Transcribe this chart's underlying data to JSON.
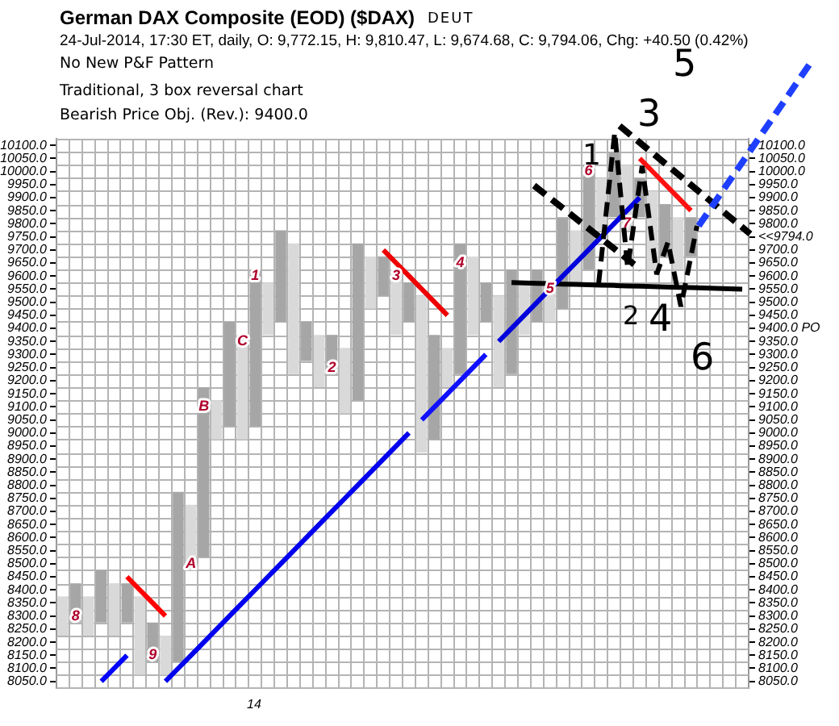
{
  "chart_data": {
    "type": "bar",
    "title": "German DAX Composite (EOD) ($DAX)",
    "subtitle": "24-Jul-2014, 17:30 ET, daily, O: 9,772.15, H: 9,810.47, L: 9,674.68, C: 9,794.06, Chg: +40.50 (0.42%)",
    "annotations": [
      "DEUT",
      "No New P&F Pattern",
      "Traditional, 3 box reversal chart",
      "Bearish Price Obj. (Rev.): 9400.0",
      "1",
      "2",
      "3",
      "4",
      "5",
      "6",
      "14",
      "8",
      "9",
      "A",
      "B",
      "C",
      "1",
      "2",
      "3",
      "4",
      "5",
      "6",
      "7"
    ],
    "categories": [
      null,
      null,
      null,
      null,
      null,
      null,
      null,
      null,
      null,
      null,
      null,
      null,
      null,
      null,
      null,
      null,
      null,
      null,
      null,
      null,
      null,
      null,
      null,
      null,
      null,
      null,
      null,
      null,
      null,
      null,
      null,
      null,
      null,
      null,
      null,
      null,
      null,
      null,
      null,
      null,
      null,
      null,
      null,
      null,
      null,
      null,
      null,
      null,
      null,
      null,
      null,
      null,
      null,
      null
    ],
    "series": [
      {
        "type": "bar",
        "base": [
          8225,
          8275,
          8225,
          8275,
          8225,
          8275,
          8075,
          8125,
          8075,
          8125,
          8475,
          8525,
          8975,
          9025,
          8975,
          9025,
          9375,
          9425,
          9225,
          9275,
          9175,
          9225,
          9075,
          9125,
          9475,
          9525,
          9375,
          9425,
          8925,
          8975,
          9175,
          9225,
          9375,
          9425,
          9175,
          9225,
          9375,
          9425,
          9425,
          9475,
          9575,
          9625,
          9775,
          9825,
          9775,
          9825,
          9625,
          9675,
          9625,
          9675,
          null,
          null,
          null,
          null
        ],
        "values": [
          150,
          150,
          150,
          200,
          200,
          150,
          300,
          150,
          150,
          650,
          250,
          650,
          150,
          400,
          400,
          600,
          200,
          350,
          500,
          150,
          200,
          150,
          250,
          600,
          200,
          150,
          250,
          150,
          600,
          400,
          150,
          500,
          300,
          150,
          350,
          400,
          200,
          200,
          150,
          350,
          200,
          400,
          200,
          250,
          250,
          150,
          300,
          200,
          200,
          150,
          null,
          null,
          null,
          null
        ],
        "colors": [
          "#d9d9d9",
          "#a6a6a6",
          "#d9d9d9",
          "#a6a6a6",
          "#d9d9d9",
          "#a6a6a6",
          "#d9d9d9",
          "#a6a6a6",
          "#d9d9d9",
          "#a6a6a6",
          "#d9d9d9",
          "#a6a6a6",
          "#d9d9d9",
          "#a6a6a6",
          "#d9d9d9",
          "#a6a6a6",
          "#d9d9d9",
          "#a6a6a6",
          "#d9d9d9",
          "#a6a6a6",
          "#d9d9d9",
          "#a6a6a6",
          "#d9d9d9",
          "#a6a6a6",
          "#d9d9d9",
          "#a6a6a6",
          "#d9d9d9",
          "#a6a6a6",
          "#d9d9d9",
          "#a6a6a6",
          "#d9d9d9",
          "#a6a6a6",
          "#d9d9d9",
          "#a6a6a6",
          "#d9d9d9",
          "#a6a6a6",
          "#d9d9d9",
          "#a6a6a6",
          "#d9d9d9",
          "#a6a6a6",
          "#d9d9d9",
          "#a6a6a6",
          "#d9d9d9",
          "#a6a6a6",
          "#d9d9d9",
          "#a6a6a6",
          "#d9d9d9",
          "#a6a6a6",
          "#d9d9d9",
          "#a6a6a6",
          null,
          null,
          null,
          null
        ]
      },
      {
        "type": "line",
        "color": "#0000ff",
        "values": [
          null,
          null,
          null,
          8050,
          8100,
          8150,
          null,
          null,
          null,
          null,
          null,
          null,
          null,
          null,
          null,
          null,
          null,
          null,
          null,
          null,
          null,
          null,
          null,
          null,
          null,
          null,
          null,
          null,
          null,
          null,
          null,
          null,
          null,
          null,
          null,
          null,
          null,
          null,
          null,
          null,
          null,
          null,
          null,
          null,
          null,
          null,
          null,
          null,
          null,
          null,
          null,
          null,
          null,
          null
        ]
      },
      {
        "type": "line",
        "color": "#0000ee",
        "values": [
          null,
          null,
          null,
          null,
          null,
          null,
          null,
          null,
          8050,
          8100,
          8150,
          8200,
          8250,
          8300,
          8350,
          8400,
          8450,
          8500,
          8550,
          8600,
          8650,
          8700,
          8750,
          8800,
          8850,
          8900,
          8950,
          9000,
          null,
          null,
          null,
          null,
          null,
          null,
          null,
          null,
          null,
          null,
          null,
          null,
          null,
          null,
          null,
          null,
          null,
          null,
          null,
          null,
          null,
          null,
          null,
          null,
          null,
          null
        ]
      },
      {
        "type": "line",
        "color": "#1010ff",
        "values": [
          null,
          null,
          null,
          null,
          null,
          null,
          null,
          null,
          null,
          null,
          null,
          null,
          null,
          null,
          null,
          null,
          null,
          null,
          null,
          null,
          null,
          null,
          null,
          null,
          null,
          null,
          null,
          null,
          9050,
          9100,
          9150,
          9200,
          9250,
          9300,
          null,
          null,
          null,
          null,
          null,
          null,
          null,
          null,
          null,
          null,
          null,
          null,
          null,
          null,
          null,
          null,
          null,
          null,
          null,
          null
        ]
      },
      {
        "type": "line",
        "color": "#0000dd",
        "values": [
          null,
          null,
          null,
          null,
          null,
          null,
          null,
          null,
          null,
          null,
          null,
          null,
          null,
          null,
          null,
          null,
          null,
          null,
          null,
          null,
          null,
          null,
          null,
          null,
          null,
          null,
          null,
          null,
          null,
          null,
          null,
          null,
          null,
          null,
          9350,
          9400,
          9450,
          9500,
          9550,
          9600,
          9650,
          9700,
          9750,
          9800,
          9850,
          9900,
          null,
          null,
          null,
          null,
          null,
          null,
          null,
          null
        ]
      },
      {
        "type": "line",
        "color": "#ff0000",
        "values": [
          null,
          null,
          null,
          null,
          null,
          8450,
          8400,
          8350,
          8300,
          null,
          null,
          null,
          null,
          null,
          null,
          null,
          null,
          null,
          null,
          null,
          null,
          null,
          null,
          null,
          null,
          null,
          null,
          null,
          null,
          null,
          null,
          null,
          null,
          null,
          null,
          null,
          null,
          null,
          null,
          null,
          null,
          null,
          null,
          null,
          null,
          null,
          null,
          null,
          null,
          null,
          null,
          null,
          null,
          null
        ]
      },
      {
        "type": "line",
        "color": "#ee0000",
        "values": [
          null,
          null,
          null,
          null,
          null,
          null,
          null,
          null,
          null,
          null,
          null,
          null,
          null,
          null,
          null,
          null,
          null,
          null,
          null,
          null,
          null,
          null,
          null,
          null,
          null,
          9700,
          9650,
          9600,
          9550,
          9500,
          9450,
          null,
          null,
          null,
          null,
          null,
          null,
          null,
          null,
          null,
          null,
          null,
          null,
          null,
          null,
          null,
          null,
          null,
          null,
          null,
          null,
          null,
          null,
          null
        ]
      },
      {
        "type": "line",
        "color": "#ff1010",
        "values": [
          null,
          null,
          null,
          null,
          null,
          null,
          null,
          null,
          null,
          null,
          null,
          null,
          null,
          null,
          null,
          null,
          null,
          null,
          null,
          null,
          null,
          null,
          null,
          null,
          null,
          null,
          null,
          null,
          null,
          null,
          null,
          null,
          null,
          null,
          null,
          null,
          null,
          null,
          null,
          null,
          null,
          null,
          null,
          null,
          null,
          10050,
          10000,
          9950,
          9900,
          9850,
          null,
          null,
          null,
          null
        ]
      },
      {
        "type": "line",
        "color": "#000000",
        "values": [
          null,
          null,
          null,
          null,
          null,
          null,
          null,
          null,
          null,
          null,
          null,
          null,
          null,
          null,
          null,
          null,
          null,
          null,
          null,
          null,
          null,
          null,
          null,
          null,
          null,
          null,
          null,
          null,
          null,
          null,
          null,
          null,
          null,
          null,
          null,
          9575,
          9574,
          9572,
          9571,
          9569,
          9568,
          9567,
          9565,
          9564,
          9562,
          9561,
          9560,
          9558,
          9557,
          9556,
          9554,
          9553,
          9551,
          9550
        ]
      }
    ],
    "ylim": [
      8025,
      10125
    ],
    "yticks": [
      {
        "value": 8050,
        "label": "8050.0"
      },
      {
        "value": 8100,
        "label": "8100.0"
      },
      {
        "value": 8150,
        "label": "8150.0"
      },
      {
        "value": 8200,
        "label": "8200.0"
      },
      {
        "value": 8250,
        "label": "8250.0"
      },
      {
        "value": 8300,
        "label": "8300.0"
      },
      {
        "value": 8350,
        "label": "8350.0"
      },
      {
        "value": 8400,
        "label": "8400.0"
      },
      {
        "value": 8450,
        "label": "8450.0"
      },
      {
        "value": 8500,
        "label": "8500.0"
      },
      {
        "value": 8550,
        "label": "8550.0"
      },
      {
        "value": 8600,
        "label": "8600.0"
      },
      {
        "value": 8650,
        "label": "8650.0"
      },
      {
        "value": 8700,
        "label": "8700.0"
      },
      {
        "value": 8750,
        "label": "8750.0"
      },
      {
        "value": 8800,
        "label": "8800.0"
      },
      {
        "value": 8850,
        "label": "8850.0"
      },
      {
        "value": 8900,
        "label": "8900.0"
      },
      {
        "value": 8950,
        "label": "8950.0"
      },
      {
        "value": 9000,
        "label": "9000.0"
      },
      {
        "value": 9050,
        "label": "9050.0"
      },
      {
        "value": 9100,
        "label": "9100.0"
      },
      {
        "value": 9150,
        "label": "9150.0"
      },
      {
        "value": 9200,
        "label": "9200.0"
      },
      {
        "value": 9250,
        "label": "9250.0"
      },
      {
        "value": 9300,
        "label": "9300.0"
      },
      {
        "value": 9350,
        "label": "9350.0"
      },
      {
        "value": 9400,
        "label": "9400.0"
      },
      {
        "value": 9450,
        "label": "9450.0"
      },
      {
        "value": 9500,
        "label": "9500.0"
      },
      {
        "value": 9550,
        "label": "9550.0"
      },
      {
        "value": 9600,
        "label": "9600.0"
      },
      {
        "value": 9650,
        "label": "9650.0"
      },
      {
        "value": 9700,
        "label": "9700.0"
      },
      {
        "value": 9750,
        "label": "9750.0"
      },
      {
        "value": 9800,
        "label": "9800.0"
      },
      {
        "value": 9850,
        "label": "9850.0"
      },
      {
        "value": 9900,
        "label": "9900.0"
      },
      {
        "value": 9950,
        "label": "9950.0"
      },
      {
        "value": 10000,
        "label": "10000.0"
      },
      {
        "value": 10050,
        "label": "10050.0"
      },
      {
        "value": 10100,
        "label": "10100.0"
      }
    ],
    "y2lim": [
      8025,
      10125
    ],
    "y2ticks": [
      {
        "value": 8050,
        "label": "8050.0"
      },
      {
        "value": 8100,
        "label": "8100.0"
      },
      {
        "value": 8150,
        "label": "8150.0"
      },
      {
        "value": 8200,
        "label": "8200.0"
      },
      {
        "value": 8250,
        "label": "8250.0"
      },
      {
        "value": 8300,
        "label": "8300.0"
      },
      {
        "value": 8350,
        "label": "8350.0"
      },
      {
        "value": 8400,
        "label": "8400.0"
      },
      {
        "value": 8450,
        "label": "8450.0"
      },
      {
        "value": 8500,
        "label": "8500.0"
      },
      {
        "value": 8550,
        "label": "8550.0"
      },
      {
        "value": 8600,
        "label": "8600.0"
      },
      {
        "value": 8650,
        "label": "8650.0"
      },
      {
        "value": 8700,
        "label": "8700.0"
      },
      {
        "value": 8750,
        "label": "8750.0"
      },
      {
        "value": 8800,
        "label": "8800.0"
      },
      {
        "value": 8850,
        "label": "8850.0"
      },
      {
        "value": 8900,
        "label": "8900.0"
      },
      {
        "value": 8950,
        "label": "8950.0"
      },
      {
        "value": 9000,
        "label": "9000.0"
      },
      {
        "value": 9050,
        "label": "9050.0"
      },
      {
        "value": 9100,
        "label": "9100.0"
      },
      {
        "value": 9150,
        "label": "9150.0"
      },
      {
        "value": 9200,
        "label": "9200.0"
      },
      {
        "value": 9250,
        "label": "9250.0"
      },
      {
        "value": 9300,
        "label": "9300.0"
      },
      {
        "value": 9350,
        "label": "9350.0"
      },
      {
        "value": 9400,
        "label": "9400.0 PO"
      },
      {
        "value": 9450,
        "label": "9450.0"
      },
      {
        "value": 9500,
        "label": "9500.0"
      },
      {
        "value": 9550,
        "label": "9550.0"
      },
      {
        "value": 9600,
        "label": "9600.0"
      },
      {
        "value": 9650,
        "label": "9650.0"
      },
      {
        "value": 9700,
        "label": "9700.0"
      },
      {
        "value": 9750,
        "label": "<<9794.0"
      },
      {
        "value": 9800,
        "label": "9800.0"
      },
      {
        "value": 9850,
        "label": "9850.0"
      },
      {
        "value": 9900,
        "label": "9900.0"
      },
      {
        "value": 9950,
        "label": "9950.0"
      },
      {
        "value": 10000,
        "label": "10000.0"
      },
      {
        "value": 10050,
        "label": "10050.0"
      },
      {
        "value": 10100,
        "label": "10100.0"
      }
    ],
    "grid": true,
    "legend": false
  }
}
